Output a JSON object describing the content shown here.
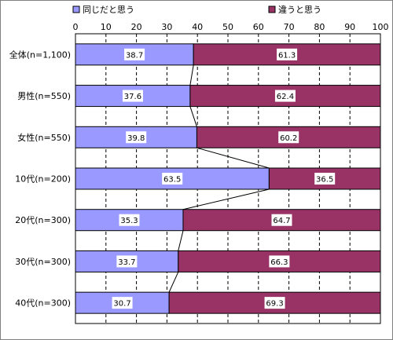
{
  "chart_data": {
    "type": "bar",
    "orientation": "horizontal",
    "stacked": true,
    "categories": [
      "全体(n=1,100)",
      "男性(n=550)",
      "女性(n=550)",
      "10代(n=200)",
      "20代(n=300)",
      "30代(n=300)",
      "40代(n=300)"
    ],
    "series": [
      {
        "name": "同じだと思う",
        "values": [
          38.7,
          37.6,
          39.8,
          63.5,
          35.3,
          33.7,
          30.7
        ],
        "labels": [
          "38.7",
          "37.6",
          "39.8",
          "63.5",
          "35.3",
          "33.7",
          "30.7"
        ],
        "color": "#9999ff"
      },
      {
        "name": "違うと思う",
        "values": [
          61.3,
          62.4,
          60.2,
          36.5,
          64.7,
          66.3,
          69.3
        ],
        "labels": [
          "61.3",
          "62.4",
          "60.2",
          "36.5",
          "64.7",
          "66.3",
          "69.3"
        ],
        "color": "#993366"
      }
    ],
    "xlim": [
      0,
      100
    ],
    "xticks": [
      "0",
      "10",
      "20",
      "30",
      "40",
      "50",
      "60",
      "70",
      "80",
      "90",
      "100"
    ],
    "grid": "dashed-vertical",
    "series_lines": true,
    "legend_position": "top"
  }
}
